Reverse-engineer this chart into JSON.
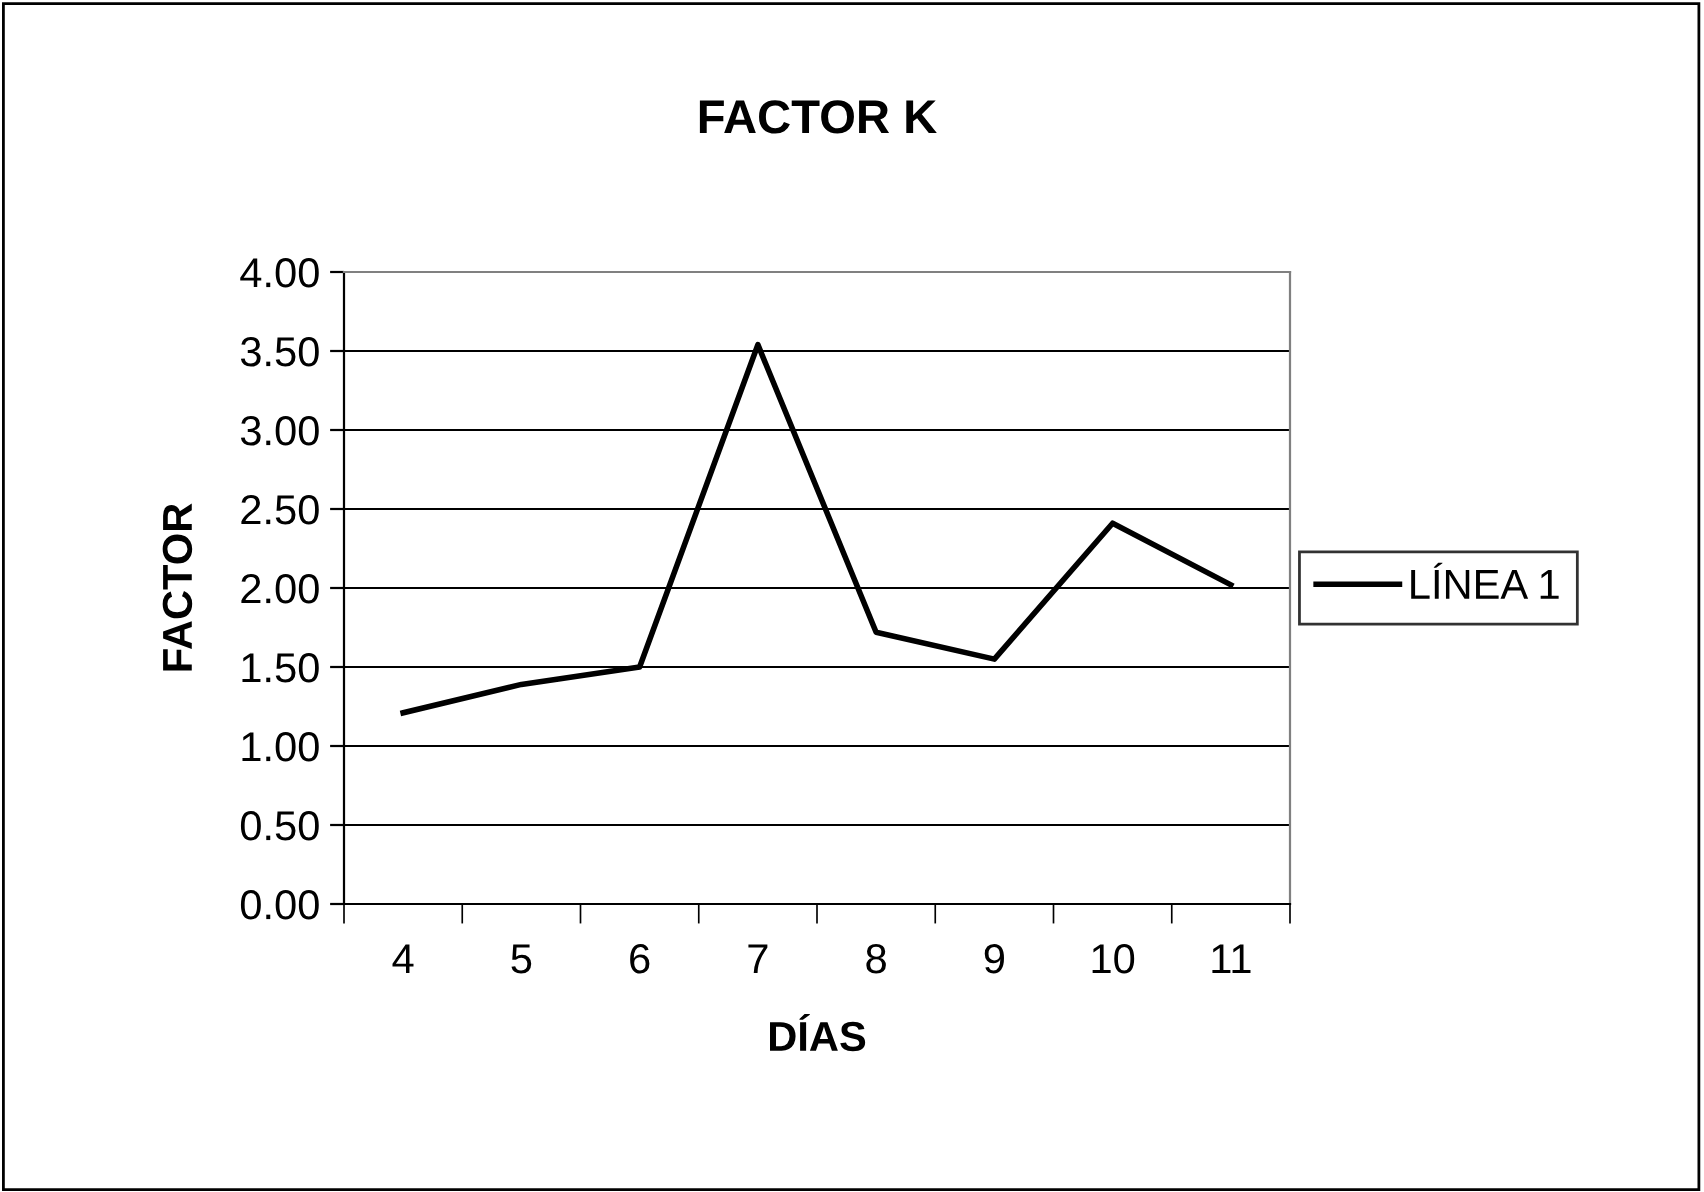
{
  "chart_data": {
    "type": "line",
    "title": "FACTOR K",
    "xlabel": "DÍAS",
    "ylabel": "FACTOR",
    "categories": [
      "4",
      "5",
      "6",
      "7",
      "8",
      "9",
      "10",
      "11"
    ],
    "series": [
      {
        "name": "LÍNEA 1",
        "color": "#000000",
        "values": [
          1.21,
          1.39,
          1.5,
          3.54,
          1.72,
          1.55,
          2.41,
          2.02
        ]
      }
    ],
    "ylim": [
      0,
      4
    ],
    "yticks": [
      {
        "value": 0,
        "label": "0.00"
      },
      {
        "value": 0.5,
        "label": "0.50"
      },
      {
        "value": 1,
        "label": "1.00"
      },
      {
        "value": 1.5,
        "label": "1.50"
      },
      {
        "value": 2,
        "label": "2.00"
      },
      {
        "value": 2.5,
        "label": "2.50"
      },
      {
        "value": 3,
        "label": "3.00"
      },
      {
        "value": 3.5,
        "label": "3.50"
      },
      {
        "value": 4,
        "label": "4.00"
      }
    ],
    "grid": "y",
    "legend": "right",
    "marker": "none",
    "line_style": "solid"
  }
}
